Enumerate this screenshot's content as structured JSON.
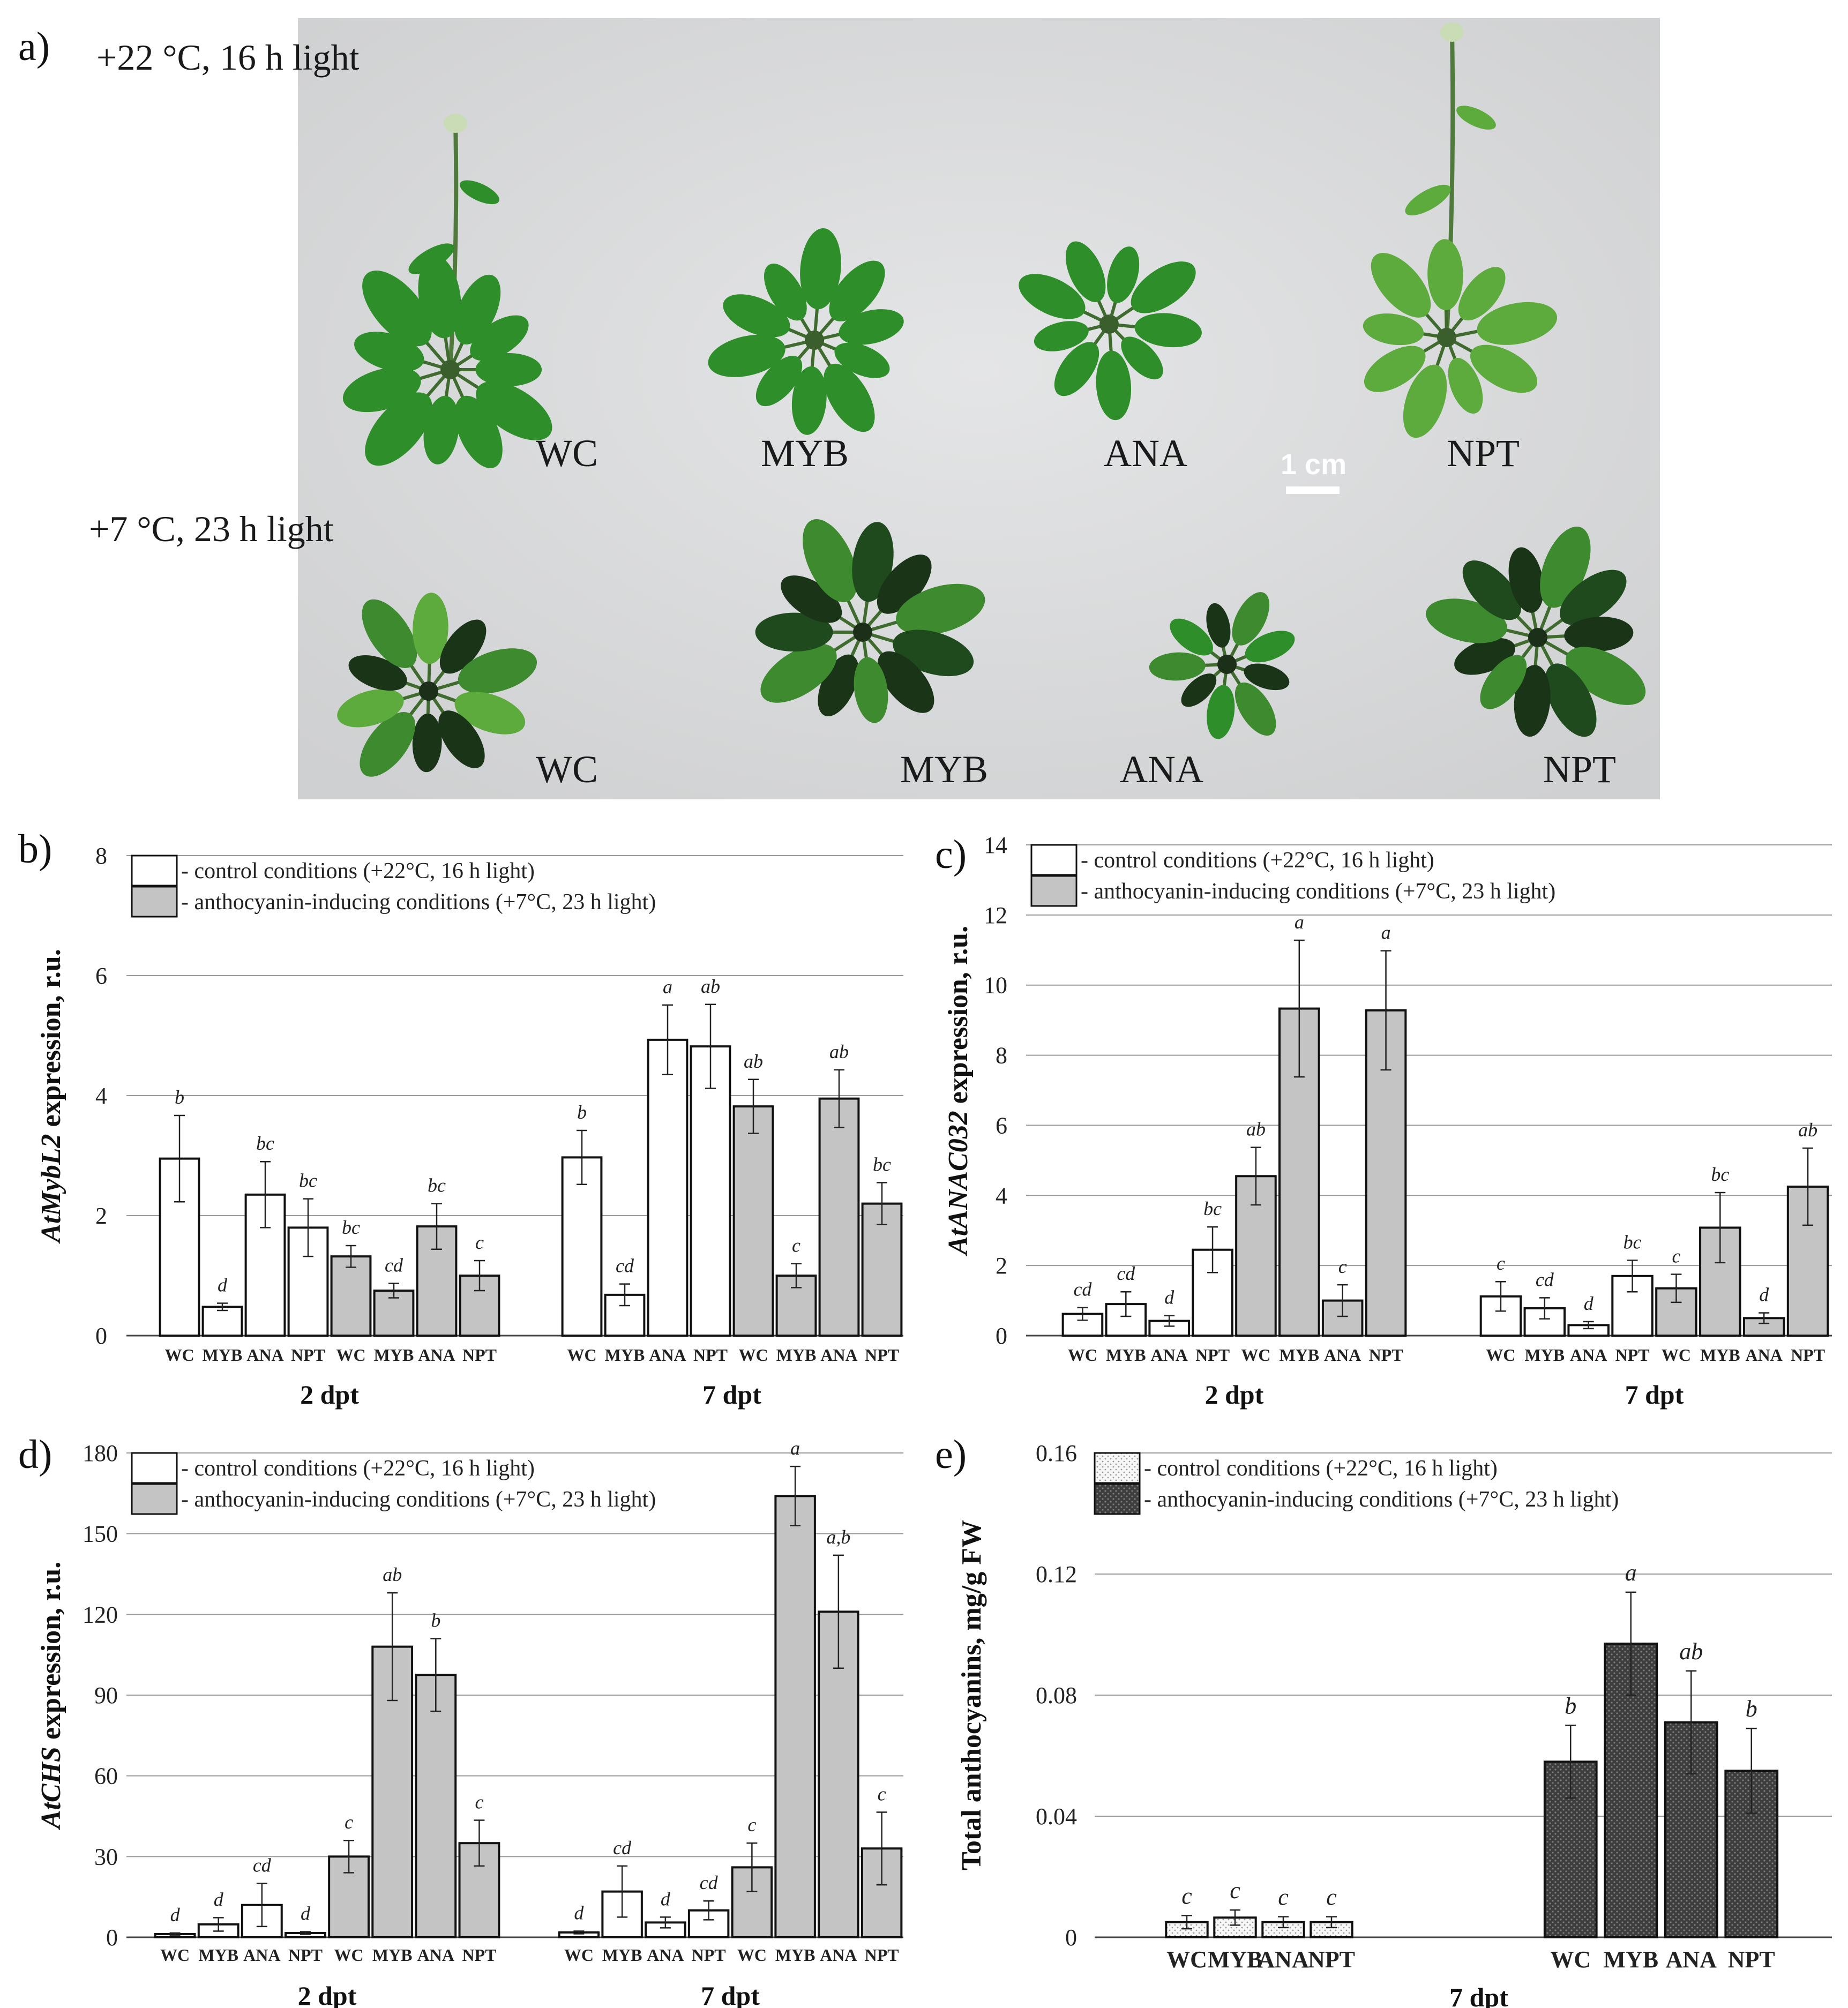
{
  "panel_a": {
    "letter": "a)",
    "top_condition": "+22 °C, 16 h light",
    "bottom_condition": "+7 °C, 23 h light",
    "top_labels": [
      "WC",
      "MYB",
      "ANA",
      "NPT"
    ],
    "bottom_labels": [
      "WC",
      "MYB",
      "ANA",
      "NPT"
    ],
    "scale_bar_label": "1 cm",
    "colors": {
      "background": "#d9dadb",
      "leaf": "#2e8f2a",
      "leaf_dark": "#1f4a1d",
      "leaf_light": "#5dab3c"
    }
  },
  "chart_data": [
    {
      "id": "b",
      "letter": "b)",
      "type": "bar",
      "ylabel_italic": "AtMybL2",
      "ylabel_rest": " expression, r.u.",
      "ylim": [
        0,
        8
      ],
      "yticks": [
        0,
        2,
        4,
        6,
        8
      ],
      "groups": [
        {
          "name": "2 dpt",
          "categories": [
            "WC",
            "MYB",
            "ANA",
            "NPT",
            "WC",
            "MYB",
            "ANA",
            "NPT"
          ],
          "condition": [
            "control",
            "control",
            "control",
            "control",
            "inducing",
            "inducing",
            "inducing",
            "inducing"
          ],
          "values": [
            2.95,
            0.48,
            2.35,
            1.8,
            1.32,
            0.75,
            1.82,
            1.0
          ],
          "errors": [
            0.72,
            0.06,
            0.55,
            0.48,
            0.18,
            0.12,
            0.38,
            0.25
          ],
          "letters": [
            "b",
            "d",
            "bc",
            "bc",
            "bc",
            "cd",
            "bc",
            "c"
          ]
        },
        {
          "name": "7 dpt",
          "categories": [
            "WC",
            "MYB",
            "ANA",
            "NPT",
            "WC",
            "MYB",
            "ANA",
            "NPT"
          ],
          "condition": [
            "control",
            "control",
            "control",
            "control",
            "inducing",
            "inducing",
            "inducing",
            "inducing"
          ],
          "values": [
            2.97,
            0.68,
            4.93,
            4.82,
            3.82,
            1.0,
            3.95,
            2.2
          ],
          "errors": [
            0.45,
            0.18,
            0.58,
            0.7,
            0.45,
            0.2,
            0.48,
            0.35
          ],
          "letters": [
            "b",
            "cd",
            "a",
            "ab",
            "ab",
            "c",
            "ab",
            "bc"
          ]
        }
      ],
      "legend": [
        "- control conditions (+22°C, 16 h light)",
        "- anthocyanin-inducing conditions (+7°C, 23 h light)"
      ],
      "legend_position": "top-left",
      "grid": true
    },
    {
      "id": "c",
      "letter": "c)",
      "type": "bar",
      "ylabel_italic": "AtANAC032",
      "ylabel_rest": " expression, r.u.",
      "ylim": [
        0,
        14
      ],
      "yticks": [
        0,
        2,
        4,
        6,
        8,
        10,
        12,
        14
      ],
      "groups": [
        {
          "name": "2 dpt",
          "categories": [
            "WC",
            "MYB",
            "ANA",
            "NPT",
            "WC",
            "MYB",
            "ANA",
            "NPT"
          ],
          "condition": [
            "control",
            "control",
            "control",
            "control",
            "inducing",
            "inducing",
            "inducing",
            "inducing"
          ],
          "values": [
            0.62,
            0.9,
            0.42,
            2.45,
            4.55,
            9.33,
            1.0,
            9.28
          ],
          "errors": [
            0.18,
            0.35,
            0.15,
            0.65,
            0.82,
            1.95,
            0.45,
            1.7
          ],
          "letters": [
            "cd",
            "cd",
            "d",
            "bc",
            "ab",
            "a",
            "c",
            "a"
          ]
        },
        {
          "name": "7 dpt",
          "categories": [
            "WC",
            "MYB",
            "ANA",
            "NPT",
            "WC",
            "MYB",
            "ANA",
            "NPT"
          ],
          "condition": [
            "control",
            "control",
            "control",
            "control",
            "inducing",
            "inducing",
            "inducing",
            "inducing"
          ],
          "values": [
            1.12,
            0.78,
            0.3,
            1.7,
            1.35,
            3.08,
            0.5,
            4.25
          ],
          "errors": [
            0.42,
            0.3,
            0.1,
            0.45,
            0.4,
            1.0,
            0.15,
            1.1
          ],
          "letters": [
            "c",
            "cd",
            "d",
            "bc",
            "c",
            "bc",
            "d",
            "ab"
          ]
        }
      ],
      "legend": [
        "- control conditions (+22°C, 16 h light)",
        "- anthocyanin-inducing conditions (+7°C, 23 h light)"
      ],
      "legend_position": "top-left",
      "grid": true
    },
    {
      "id": "d",
      "letter": "d)",
      "type": "bar",
      "ylabel_italic": "AtCHS",
      "ylabel_rest": " expression, r.u.",
      "ylim": [
        0,
        180
      ],
      "yticks": [
        0,
        30,
        60,
        90,
        120,
        150,
        180
      ],
      "groups": [
        {
          "name": "2 dpt",
          "categories": [
            "WC",
            "MYB",
            "ANA",
            "NPT",
            "WC",
            "MYB",
            "ANA",
            "NPT"
          ],
          "condition": [
            "control",
            "control",
            "control",
            "control",
            "inducing",
            "inducing",
            "inducing",
            "inducing"
          ],
          "values": [
            1.2,
            4.8,
            12.0,
            1.6,
            30.0,
            108.0,
            97.5,
            35.0
          ],
          "errors": [
            0.4,
            2.5,
            8.0,
            0.5,
            6.0,
            20.0,
            13.5,
            8.5
          ],
          "letters": [
            "d",
            "d",
            "cd",
            "d",
            "c",
            "ab",
            "b",
            "c"
          ]
        },
        {
          "name": "7 dpt",
          "categories": [
            "WC",
            "MYB",
            "ANA",
            "NPT",
            "WC",
            "MYB",
            "ANA",
            "NPT"
          ],
          "condition": [
            "control",
            "control",
            "control",
            "control",
            "inducing",
            "inducing",
            "inducing",
            "inducing"
          ],
          "values": [
            1.8,
            17.0,
            5.5,
            10.0,
            26.0,
            164.0,
            121.0,
            33.0
          ],
          "errors": [
            0.5,
            9.5,
            2.0,
            3.5,
            9.0,
            11.0,
            21.0,
            13.5
          ],
          "letters": [
            "d",
            "cd",
            "d",
            "cd",
            "c",
            "a",
            "a,b",
            "c"
          ]
        }
      ],
      "legend": [
        "- control conditions (+22°C, 16 h light)",
        "- anthocyanin-inducing conditions (+7°C, 23 h light)"
      ],
      "legend_position": "top-left",
      "grid": true
    },
    {
      "id": "e",
      "letter": "e)",
      "type": "bar",
      "ylabel_italic": "",
      "ylabel_rest": "Total anthocyanins, mg/g FW",
      "ylim": [
        0,
        0.16
      ],
      "yticks": [
        "0",
        "0.04",
        "0.08",
        "0.12",
        "0.16"
      ],
      "groups": [
        {
          "name": "",
          "categories": [
            "WC",
            "MYB",
            "ANA",
            "NPT"
          ],
          "condition": [
            "control",
            "control",
            "control",
            "control"
          ],
          "values": [
            0.005,
            0.0065,
            0.005,
            0.005
          ],
          "errors": [
            0.0022,
            0.0025,
            0.0018,
            0.0018
          ],
          "letters": [
            "c",
            "c",
            "c",
            "c"
          ]
        },
        {
          "name": "",
          "categories": [
            "WC",
            "MYB",
            "ANA",
            "NPT"
          ],
          "condition": [
            "inducing",
            "inducing",
            "inducing",
            "inducing"
          ],
          "values": [
            0.058,
            0.097,
            0.071,
            0.055
          ],
          "errors": [
            0.012,
            0.017,
            0.017,
            0.014
          ],
          "letters": [
            "b",
            "a",
            "ab",
            "b"
          ]
        }
      ],
      "shared_xlabel": "7 dpt",
      "legend": [
        "- control conditions (+22°C, 16 h light)",
        "- anthocyanin-inducing conditions (+7°C, 23 h light)"
      ],
      "legend_position": "top-left",
      "grid": true
    }
  ],
  "colors": {
    "control": "#ffffff",
    "inducing": "#c4c4c4",
    "e_control": "#f4f4f4",
    "e_inducing": "#4a4a4a",
    "grid": "#9a9a9a",
    "bar_stroke": "#111111"
  }
}
